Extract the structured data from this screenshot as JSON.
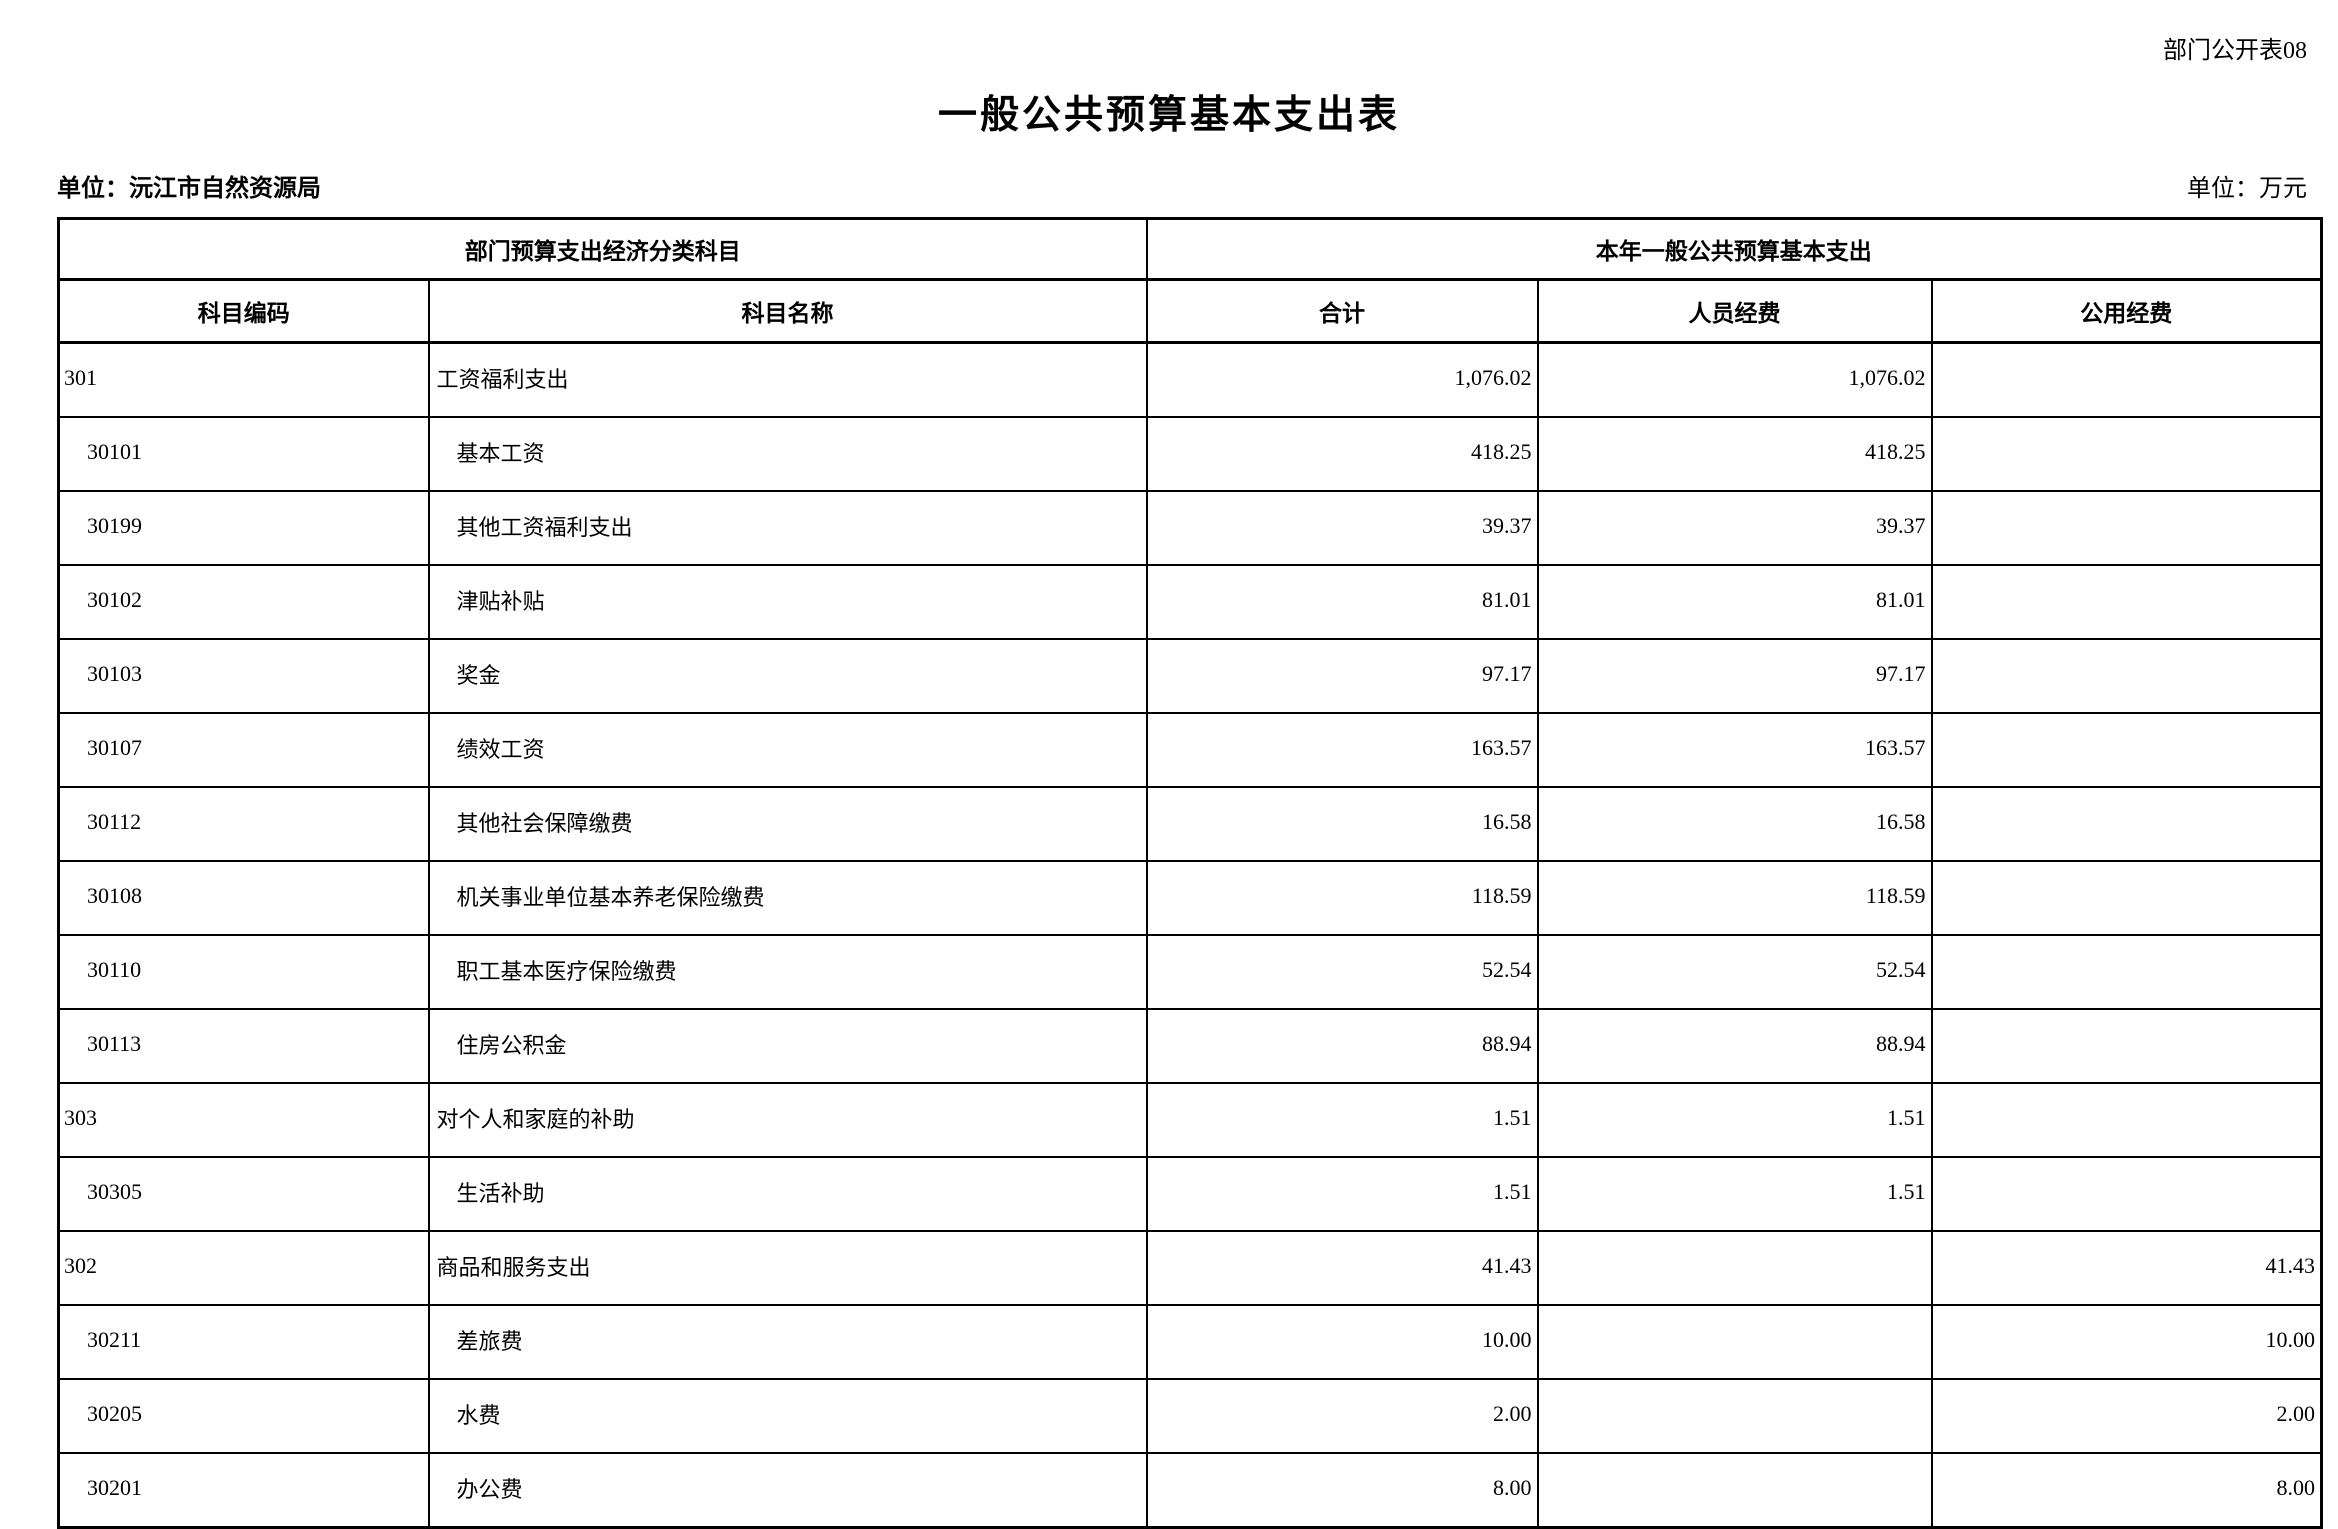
{
  "page": {
    "doc_label": "部门公开表08",
    "title": "一般公共预算基本支出表",
    "unit_left": "单位：沅江市自然资源局",
    "unit_right": "单位：万元"
  },
  "table": {
    "group_headers": {
      "left": "部门预算支出经济分类科目",
      "right": "本年一般公共预算基本支出"
    },
    "columns": [
      "科目编码",
      "科目名称",
      "合计",
      "人员经费",
      "公用经费"
    ],
    "rows": [
      {
        "level": 0,
        "code": "301",
        "name": "工资福利支出",
        "total": "1,076.02",
        "personnel": "1,076.02",
        "public_funds": ""
      },
      {
        "level": 1,
        "code": "30101",
        "name": "基本工资",
        "total": "418.25",
        "personnel": "418.25",
        "public_funds": ""
      },
      {
        "level": 1,
        "code": "30199",
        "name": "其他工资福利支出",
        "total": "39.37",
        "personnel": "39.37",
        "public_funds": ""
      },
      {
        "level": 1,
        "code": "30102",
        "name": "津贴补贴",
        "total": "81.01",
        "personnel": "81.01",
        "public_funds": ""
      },
      {
        "level": 1,
        "code": "30103",
        "name": "奖金",
        "total": "97.17",
        "personnel": "97.17",
        "public_funds": ""
      },
      {
        "level": 1,
        "code": "30107",
        "name": "绩效工资",
        "total": "163.57",
        "personnel": "163.57",
        "public_funds": ""
      },
      {
        "level": 1,
        "code": "30112",
        "name": "其他社会保障缴费",
        "total": "16.58",
        "personnel": "16.58",
        "public_funds": ""
      },
      {
        "level": 1,
        "code": "30108",
        "name": "机关事业单位基本养老保险缴费",
        "total": "118.59",
        "personnel": "118.59",
        "public_funds": ""
      },
      {
        "level": 1,
        "code": "30110",
        "name": "职工基本医疗保险缴费",
        "total": "52.54",
        "personnel": "52.54",
        "public_funds": ""
      },
      {
        "level": 1,
        "code": "30113",
        "name": "住房公积金",
        "total": "88.94",
        "personnel": "88.94",
        "public_funds": ""
      },
      {
        "level": 0,
        "code": "303",
        "name": "对个人和家庭的补助",
        "total": "1.51",
        "personnel": "1.51",
        "public_funds": ""
      },
      {
        "level": 1,
        "code": "30305",
        "name": "生活补助",
        "total": "1.51",
        "personnel": "1.51",
        "public_funds": ""
      },
      {
        "level": 0,
        "code": "302",
        "name": "商品和服务支出",
        "total": "41.43",
        "personnel": "",
        "public_funds": "41.43"
      },
      {
        "level": 1,
        "code": "30211",
        "name": "差旅费",
        "total": "10.00",
        "personnel": "",
        "public_funds": "10.00"
      },
      {
        "level": 1,
        "code": "30205",
        "name": "水费",
        "total": "2.00",
        "personnel": "",
        "public_funds": "2.00"
      },
      {
        "level": 1,
        "code": "30201",
        "name": "办公费",
        "total": "8.00",
        "personnel": "",
        "public_funds": "8.00"
      }
    ]
  }
}
